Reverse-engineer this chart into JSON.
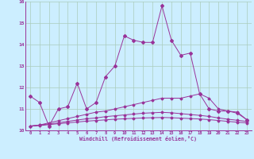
{
  "xlabel": "Windchill (Refroidissement éolien,°C)",
  "background_color": "#cceeff",
  "grid_color": "#aaccbb",
  "line_color": "#993399",
  "xlim": [
    -0.5,
    23.5
  ],
  "ylim": [
    10.0,
    16.0
  ],
  "yticks": [
    10,
    11,
    12,
    13,
    14,
    15,
    16
  ],
  "xticks": [
    0,
    1,
    2,
    3,
    4,
    5,
    6,
    7,
    8,
    9,
    10,
    11,
    12,
    13,
    14,
    15,
    16,
    17,
    18,
    19,
    20,
    21,
    22,
    23
  ],
  "series": [
    [
      11.6,
      11.3,
      10.2,
      11.0,
      11.1,
      12.2,
      11.0,
      11.3,
      12.5,
      13.0,
      14.4,
      14.2,
      14.1,
      14.1,
      15.8,
      14.2,
      13.5,
      13.6,
      11.7,
      11.0,
      10.9,
      10.9,
      10.8,
      10.5
    ],
    [
      10.2,
      10.25,
      10.35,
      10.45,
      10.55,
      10.65,
      10.75,
      10.85,
      10.9,
      11.0,
      11.1,
      11.2,
      11.3,
      11.4,
      11.5,
      11.5,
      11.5,
      11.6,
      11.7,
      11.5,
      11.0,
      10.9,
      10.85,
      10.5
    ],
    [
      10.2,
      10.25,
      10.3,
      10.35,
      10.42,
      10.48,
      10.54,
      10.58,
      10.64,
      10.68,
      10.72,
      10.76,
      10.8,
      10.82,
      10.84,
      10.82,
      10.78,
      10.74,
      10.7,
      10.65,
      10.58,
      10.52,
      10.47,
      10.42
    ],
    [
      10.2,
      10.22,
      10.27,
      10.31,
      10.35,
      10.39,
      10.43,
      10.46,
      10.49,
      10.52,
      10.54,
      10.56,
      10.58,
      10.59,
      10.6,
      10.59,
      10.57,
      10.55,
      10.53,
      10.5,
      10.46,
      10.42,
      10.38,
      10.35
    ]
  ]
}
